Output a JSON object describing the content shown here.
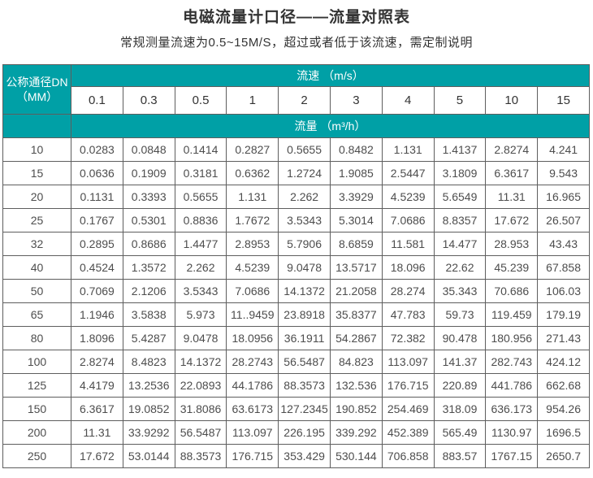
{
  "page": {
    "title": "电磁流量计口径——流量对照表",
    "subtitle": "常规测量流速为0.5~15M/S，超过或者低于该流速，需定制说明"
  },
  "colors": {
    "accent_teal": "#00A0A6",
    "header_text": "#ffffff",
    "body_text": "#333333",
    "cell_text": "#4d4d4d",
    "grid_border": "#5e5e5e"
  },
  "chart_data": {
    "type": "table",
    "title": "电磁流量计口径——流量对照表",
    "subtitle": "常规测量流速为0.5~15M/S，超过或者低于该流速，需定制说明",
    "corner_label_line1": "公称通径DN",
    "corner_label_line2": "（MM）",
    "column_group_label": "流速 （m/s）",
    "value_group_label": "流量 （m³/h）",
    "columns_velocity_mps": [
      "0.1",
      "0.3",
      "0.5",
      "1",
      "2",
      "3",
      "4",
      "5",
      "10",
      "15"
    ],
    "rows": [
      {
        "dn": "10",
        "flows": [
          "0.0283",
          "0.0848",
          "0.1414",
          "0.2827",
          "0.5655",
          "0.8482",
          "1.131",
          "1.4137",
          "2.8274",
          "4.241"
        ]
      },
      {
        "dn": "15",
        "flows": [
          "0.0636",
          "0.1909",
          "0.3181",
          "0.6362",
          "1.2724",
          "1.9085",
          "2.5447",
          "3.1809",
          "6.3617",
          "9.543"
        ]
      },
      {
        "dn": "20",
        "flows": [
          "0.1131",
          "0.3393",
          "0.5655",
          "1.131",
          "2.262",
          "3.3929",
          "4.5239",
          "5.6549",
          "11.31",
          "16.965"
        ]
      },
      {
        "dn": "25",
        "flows": [
          "0.1767",
          "0.5301",
          "0.8836",
          "1.7672",
          "3.5343",
          "5.3014",
          "7.0686",
          "8.8357",
          "17.672",
          "26.507"
        ]
      },
      {
        "dn": "32",
        "flows": [
          "0.2895",
          "0.8686",
          "1.4477",
          "2.8953",
          "5.7906",
          "8.6859",
          "11.581",
          "14.477",
          "28.953",
          "43.43"
        ]
      },
      {
        "dn": "40",
        "flows": [
          "0.4524",
          "1.3572",
          "2.262",
          "4.5239",
          "9.0478",
          "13.5717",
          "18.096",
          "22.62",
          "45.239",
          "67.858"
        ]
      },
      {
        "dn": "50",
        "flows": [
          "0.7069",
          "2.1206",
          "3.5343",
          "7.0686",
          "14.1372",
          "21.2058",
          "28.274",
          "35.343",
          "70.686",
          "106.03"
        ]
      },
      {
        "dn": "65",
        "flows": [
          "1.1946",
          "3.5838",
          "5.973",
          "11..9459",
          "23.8918",
          "35.8377",
          "47.783",
          "59.73",
          "119.459",
          "179.19"
        ]
      },
      {
        "dn": "80",
        "flows": [
          "1.8096",
          "5.4287",
          "9.0478",
          "18.0956",
          "36.1911",
          "54.2867",
          "72.382",
          "90.478",
          "180.956",
          "271.43"
        ]
      },
      {
        "dn": "100",
        "flows": [
          "2.8274",
          "8.4823",
          "14.1372",
          "28.2743",
          "56.5487",
          "84.823",
          "113.097",
          "141.37",
          "282.743",
          "424.12"
        ]
      },
      {
        "dn": "125",
        "flows": [
          "4.4179",
          "13.2536",
          "22.0893",
          "44.1786",
          "88.3573",
          "132.536",
          "176.715",
          "220.89",
          "441.786",
          "662.68"
        ]
      },
      {
        "dn": "150",
        "flows": [
          "6.3617",
          "19.0852",
          "31.8086",
          "63.6173",
          "127.2345",
          "190.852",
          "254.469",
          "318.09",
          "636.173",
          "954.26"
        ]
      },
      {
        "dn": "200",
        "flows": [
          "11.31",
          "33.9292",
          "56.5487",
          "113.097",
          "226.195",
          "339.292",
          "452.389",
          "565.49",
          "1130.97",
          "1696.5"
        ]
      },
      {
        "dn": "250",
        "flows": [
          "17.672",
          "53.0144",
          "88.3573",
          "176.715",
          "353.429",
          "530.144",
          "706.858",
          "883.57",
          "1767.15",
          "2650.7"
        ]
      }
    ]
  }
}
